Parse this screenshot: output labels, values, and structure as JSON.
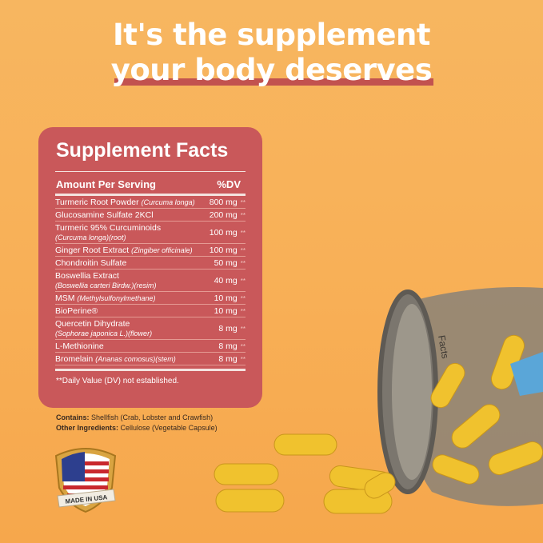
{
  "headline": {
    "line1": "It's the supplement",
    "line2": "your body deserves"
  },
  "facts": {
    "title": "Supplement Facts",
    "header_left": "Amount Per Serving",
    "header_right": "%DV",
    "rows": [
      {
        "name": "Turmeric Root Powder",
        "latin": "(Curcuma longa)",
        "amount": "800 mg",
        "dv": "**"
      },
      {
        "name": "Glucosamine Sulfate 2KCl",
        "latin": "",
        "amount": "200 mg",
        "dv": "**"
      },
      {
        "name": "Turmeric 95% Curcuminoids",
        "latin": "(Curcuma longa)(root)",
        "amount": "100 mg",
        "dv": "**"
      },
      {
        "name": "Ginger Root Extract",
        "latin": "(Zingiber officinale)",
        "amount": "100 mg",
        "dv": "**"
      },
      {
        "name": "Chondroitin Sulfate",
        "latin": "",
        "amount": "50 mg",
        "dv": "**"
      },
      {
        "name": "Boswellia Extract",
        "latin": "(Boswellia carteri Birdw.)(resim)",
        "amount": "40 mg",
        "dv": "**"
      },
      {
        "name": "MSM",
        "latin": "(Methylsulfonylmethane)",
        "amount": "10 mg",
        "dv": "**"
      },
      {
        "name": "BioPerine®",
        "latin": "",
        "amount": "10 mg",
        "dv": "**"
      },
      {
        "name": "Quercetin Dihydrate",
        "latin": "(Sophorae japonica L.)(flower)",
        "amount": "8 mg",
        "dv": "**"
      },
      {
        "name": "L-Methionine",
        "latin": "",
        "amount": "8 mg",
        "dv": "**"
      },
      {
        "name": "Bromelain",
        "latin": "(Ananas comosus)(stem)",
        "amount": "8 mg",
        "dv": "**"
      }
    ],
    "footnote": "**Daily Value (DV) not established."
  },
  "contains": {
    "label": "Contains:",
    "value": "Shellfish (Crab, Lobster and Crawfish)"
  },
  "other": {
    "label": "Other Ingredients:",
    "value": "Cellulose (Vegetable Capsule)"
  },
  "badge": {
    "text": "MADE IN USA"
  },
  "jar_label": "Facts",
  "colors": {
    "background": "#f7b05a",
    "panel": "#c9585a",
    "underline": "#c2524f",
    "capsule": "#f0c22e"
  }
}
